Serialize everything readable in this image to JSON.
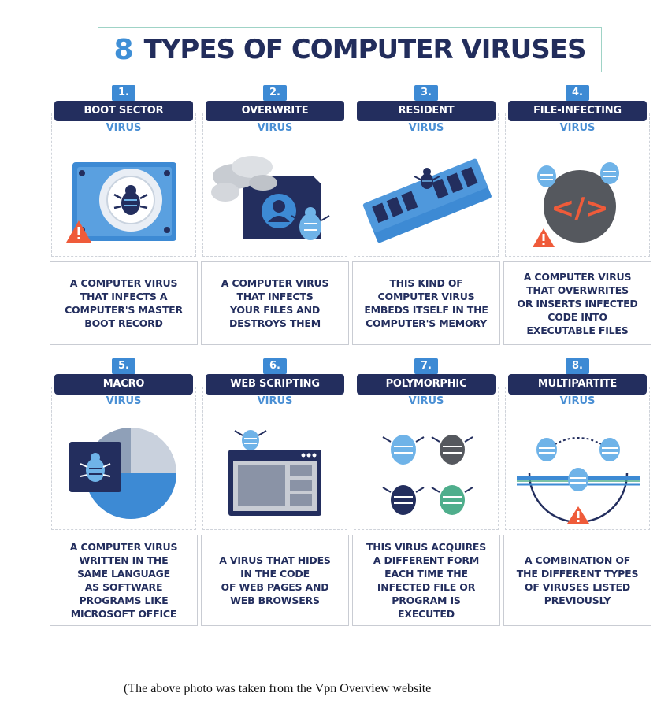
{
  "title": {
    "number": "8",
    "text": "TYPES OF COMPUTER VIRUSES"
  },
  "virus_word": "VIRUS",
  "cards": [
    {
      "number": "1.",
      "name": "BOOT SECTOR",
      "description": "A COMPUTER VIRUS\nTHAT INFECTS A\nCOMPUTER'S MASTER\nBOOT RECORD"
    },
    {
      "number": "2.",
      "name": "OVERWRITE",
      "description": "A COMPUTER VIRUS\nTHAT INFECTS\nYOUR FILES AND\nDESTROYS THEM"
    },
    {
      "number": "3.",
      "name": "RESIDENT",
      "description": "THIS KIND OF\nCOMPUTER VIRUS\nEMBEDS ITSELF IN THE\nCOMPUTER'S MEMORY"
    },
    {
      "number": "4.",
      "name": "FILE-INFECTING",
      "description": "A COMPUTER VIRUS\nTHAT OVERWRITES\nOR INSERTS INFECTED\nCODE INTO\nEXECUTABLE FILES"
    },
    {
      "number": "5.",
      "name": "MACRO",
      "description": "A COMPUTER VIRUS\nWRITTEN IN THE\nSAME LANGUAGE\nAS SOFTWARE\nPROGRAMS LIKE\nMICROSOFT OFFICE"
    },
    {
      "number": "6.",
      "name": "WEB SCRIPTING",
      "description": "A VIRUS THAT HIDES\nIN THE CODE\nOF WEB PAGES AND\nWEB BROWSERS"
    },
    {
      "number": "7.",
      "name": "POLYMORPHIC",
      "description": "THIS VIRUS ACQUIRES\nA DIFFERENT FORM\nEACH TIME THE\nINFECTED FILE OR\nPROGRAM IS\nEXECUTED"
    },
    {
      "number": "8.",
      "name": "MULTIPARTITE",
      "description": "A COMBINATION OF\nTHE DIFFERENT TYPES\nOF VIRUSES LISTED\nPREVIOUSLY"
    }
  ],
  "caption": "(The above photo was taken from the Vpn Overview website",
  "colors": {
    "navy": "#232e5e",
    "blue": "#3d8ad4",
    "light_blue": "#6fb3e8",
    "warning": "#ef5b3a"
  }
}
